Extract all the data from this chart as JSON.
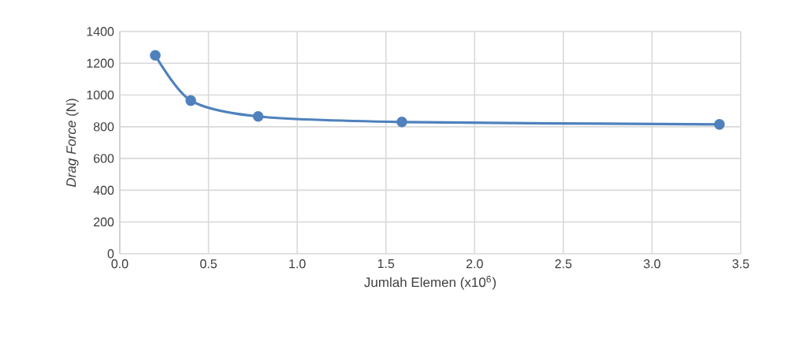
{
  "chart_data": {
    "type": "line",
    "xlabel": "Jumlah Elemen (x10$^{6}$)",
    "ylabel": "*Drag Force* (N)",
    "x": [
      0.2,
      0.4,
      0.78,
      1.59,
      3.38
    ],
    "values": [
      1250,
      965,
      865,
      830,
      815
    ],
    "color": "#4f81bd",
    "marker": "circle",
    "grid": true,
    "xlim": [
      0,
      3.5
    ],
    "ylim": [
      0,
      1400
    ],
    "xticks": [
      {
        "value": 0,
        "label": "0.0"
      },
      {
        "value": 0.5,
        "label": "0.5"
      },
      {
        "value": 1,
        "label": "1.0"
      },
      {
        "value": 1.5,
        "label": "1.5"
      },
      {
        "value": 2,
        "label": "2.0"
      },
      {
        "value": 2.5,
        "label": "2.5"
      },
      {
        "value": 3,
        "label": "3.0"
      },
      {
        "value": 3.5,
        "label": "3.5"
      }
    ],
    "yticks": [
      0,
      200,
      400,
      600,
      800,
      1000,
      1200,
      1400
    ]
  }
}
